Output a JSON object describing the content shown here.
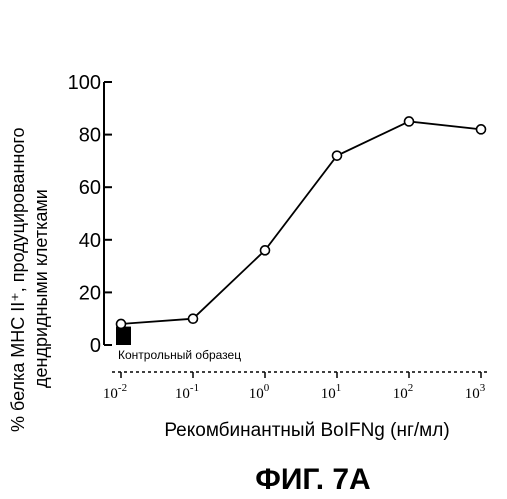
{
  "chart_data": {
    "type": "line",
    "ylabel_line1": "% белка MHC II⁺, продуцированного",
    "ylabel_line2": "дендридными клетками",
    "xlabel": "Рекомбинантный BoIFNg (нг/мл)",
    "figure_caption": "ФИГ. 7А",
    "x_scale": "log",
    "xlim": [
      0.01,
      1000
    ],
    "ylim": [
      0,
      100
    ],
    "y_ticks": [
      0,
      20,
      40,
      60,
      80,
      100
    ],
    "x_ticks": [
      {
        "value": 0.01,
        "base": "10",
        "exp": "-2"
      },
      {
        "value": 0.1,
        "base": "10",
        "exp": "-1"
      },
      {
        "value": 1,
        "base": "10",
        "exp": "0"
      },
      {
        "value": 10,
        "base": "10",
        "exp": "1"
      },
      {
        "value": 100,
        "base": "10",
        "exp": "2"
      },
      {
        "value": 1000,
        "base": "10",
        "exp": "3"
      }
    ],
    "series": [
      {
        "x": [
          0.01,
          0.1,
          1,
          10,
          100,
          1000
        ],
        "y": [
          8,
          10,
          36,
          72,
          85,
          82
        ]
      }
    ],
    "control": {
      "label": "Контрольный образец",
      "value": 7
    },
    "grid": false,
    "marker": "open-circle"
  }
}
